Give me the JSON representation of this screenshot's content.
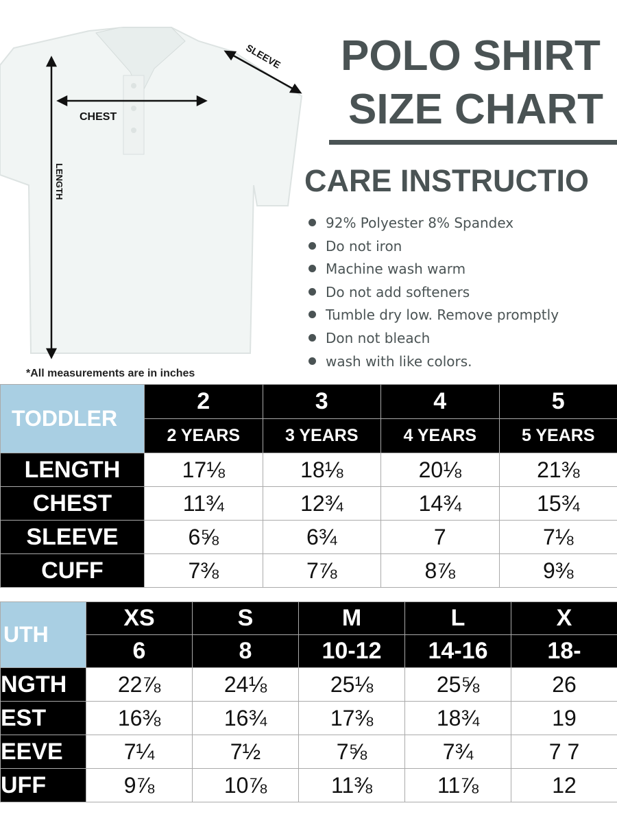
{
  "title_line1": "POLO SHIRT",
  "title_line2": "SIZE CHART",
  "care_heading": "CARE INSTRUCTIO",
  "care_items": [
    "92% Polyester 8% Spandex",
    "Do not iron",
    "Machine wash warm",
    "Do not add softeners",
    "Tumble dry low. Remove promptly",
    "Don not bleach",
    "wash with like colors."
  ],
  "diagram": {
    "chest": "CHEST",
    "sleeve": "SLEEVE",
    "length": "LENGTH",
    "note": "*All measurements are in inches"
  },
  "colors": {
    "header_blue": "#a9cfe3",
    "text_gray": "#4a5354"
  },
  "toddler": {
    "label": "TODDLER",
    "sizes": [
      "2",
      "3",
      "4",
      "5"
    ],
    "ages": [
      "2 YEARS",
      "3 YEARS",
      "4 YEARS",
      "5 YEARS"
    ],
    "rows": [
      {
        "name": "LENGTH",
        "values": [
          "17⅛",
          "18⅛",
          "20⅛",
          "21⅜"
        ]
      },
      {
        "name": "CHEST",
        "values": [
          "11¾",
          "12¾",
          "14¾",
          "15¾"
        ]
      },
      {
        "name": "SLEEVE",
        "values": [
          "6⅝",
          "6¾",
          "7",
          "7⅛"
        ]
      },
      {
        "name": "CUFF",
        "values": [
          "7⅜",
          "7⅞",
          "8⅞",
          "9⅜"
        ]
      }
    ]
  },
  "youth": {
    "label": "UTH",
    "sizes": [
      "XS",
      "S",
      "M",
      "L",
      "X"
    ],
    "ages": [
      "6",
      "8",
      "10-12",
      "14-16",
      "18-"
    ],
    "rows": [
      {
        "name": "NGTH",
        "values": [
          "22⅞",
          "24⅛",
          "25⅛",
          "25⅝",
          "26"
        ]
      },
      {
        "name": "EST",
        "values": [
          "16⅜",
          "16¾",
          "17⅜",
          "18¾",
          "19"
        ]
      },
      {
        "name": "EEVE",
        "values": [
          "7¼",
          "7½",
          "7⅝",
          "7¾",
          "7 7"
        ]
      },
      {
        "name": "UFF",
        "values": [
          "9⅞",
          "10⅞",
          "11⅜",
          "11⅞",
          "12"
        ]
      }
    ]
  }
}
